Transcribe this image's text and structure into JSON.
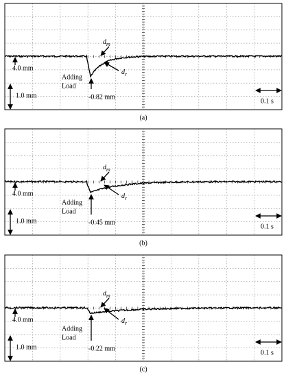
{
  "panels": [
    {
      "caption": "(a)",
      "dm": {
        "symbol": "d",
        "subscript": "m"
      },
      "dr": {
        "symbol": "d",
        "subscript": "r"
      },
      "offset": "4.0 mm",
      "event": [
        "Adding",
        "Load"
      ],
      "peak": "-0.82 mm",
      "scale_y": "1.0 mm",
      "scale_x": "0.1 s"
    },
    {
      "caption": "(b)",
      "dm": {
        "symbol": "d",
        "subscript": "m"
      },
      "dr": {
        "symbol": "d",
        "subscript": "r"
      },
      "offset": "4.0 mm",
      "event": [
        "Adding",
        "Load"
      ],
      "peak": "-0.45 mm",
      "scale_y": "1.0 mm",
      "scale_x": "0.1 s"
    },
    {
      "caption": "(c)",
      "dm": {
        "symbol": "d",
        "subscript": "m"
      },
      "dr": {
        "symbol": "d",
        "subscript": "r"
      },
      "offset": "4.0 mm",
      "event": [
        "Adding",
        "Load"
      ],
      "peak": "-0.22 mm",
      "scale_y": "1.0 mm",
      "scale_x": "0.1 s"
    }
  ]
}
